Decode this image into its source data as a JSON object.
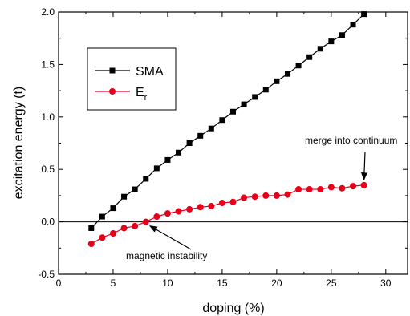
{
  "chart_data": {
    "type": "line",
    "xlabel": "doping (%)",
    "ylabel": "excitation energy (t)",
    "xlim": [
      0,
      32
    ],
    "ylim": [
      -0.5,
      2.0
    ],
    "x_ticks": [
      0,
      5,
      10,
      15,
      20,
      25,
      30
    ],
    "x_tick_labels": [
      "0",
      "5",
      "10",
      "15",
      "20",
      "25",
      "30"
    ],
    "y_ticks": [
      -0.5,
      0.0,
      0.5,
      1.0,
      1.5,
      2.0
    ],
    "y_tick_labels": [
      "-0.5",
      "0.0",
      "0.5",
      "1.0",
      "1.5",
      "2.0"
    ],
    "zero_line": true,
    "grid": false,
    "legend_position": "top-left",
    "series": [
      {
        "name": "SMA",
        "color": "#000000",
        "marker": "square",
        "x": [
          3,
          4,
          5,
          6,
          7,
          8,
          9,
          10,
          11,
          12,
          13,
          14,
          15,
          16,
          17,
          18,
          19,
          20,
          21,
          22,
          23,
          24,
          25,
          26,
          27,
          28
        ],
        "y": [
          -0.06,
          0.05,
          0.13,
          0.24,
          0.31,
          0.41,
          0.51,
          0.59,
          0.66,
          0.75,
          0.82,
          0.89,
          0.97,
          1.05,
          1.12,
          1.19,
          1.26,
          1.34,
          1.41,
          1.49,
          1.57,
          1.65,
          1.72,
          1.78,
          1.88,
          1.98
        ]
      },
      {
        "name": "E",
        "name_sub": "r",
        "color": "#e8001a",
        "marker": "circle",
        "x": [
          3,
          4,
          5,
          6,
          7,
          8,
          9,
          10,
          11,
          12,
          13,
          14,
          15,
          16,
          17,
          18,
          19,
          20,
          21,
          22,
          23,
          24,
          25,
          26,
          27,
          28
        ],
        "y": [
          -0.21,
          -0.15,
          -0.11,
          -0.06,
          -0.04,
          0.0,
          0.05,
          0.08,
          0.1,
          0.12,
          0.14,
          0.15,
          0.18,
          0.19,
          0.23,
          0.24,
          0.25,
          0.25,
          0.26,
          0.31,
          0.31,
          0.31,
          0.33,
          0.32,
          0.34,
          0.35
        ]
      }
    ],
    "annotations": [
      {
        "text": "magnetic instability",
        "arrow_to": [
          8,
          0.0
        ]
      },
      {
        "text": "merge into continuum",
        "arrow_to": [
          28,
          0.37
        ]
      }
    ]
  }
}
